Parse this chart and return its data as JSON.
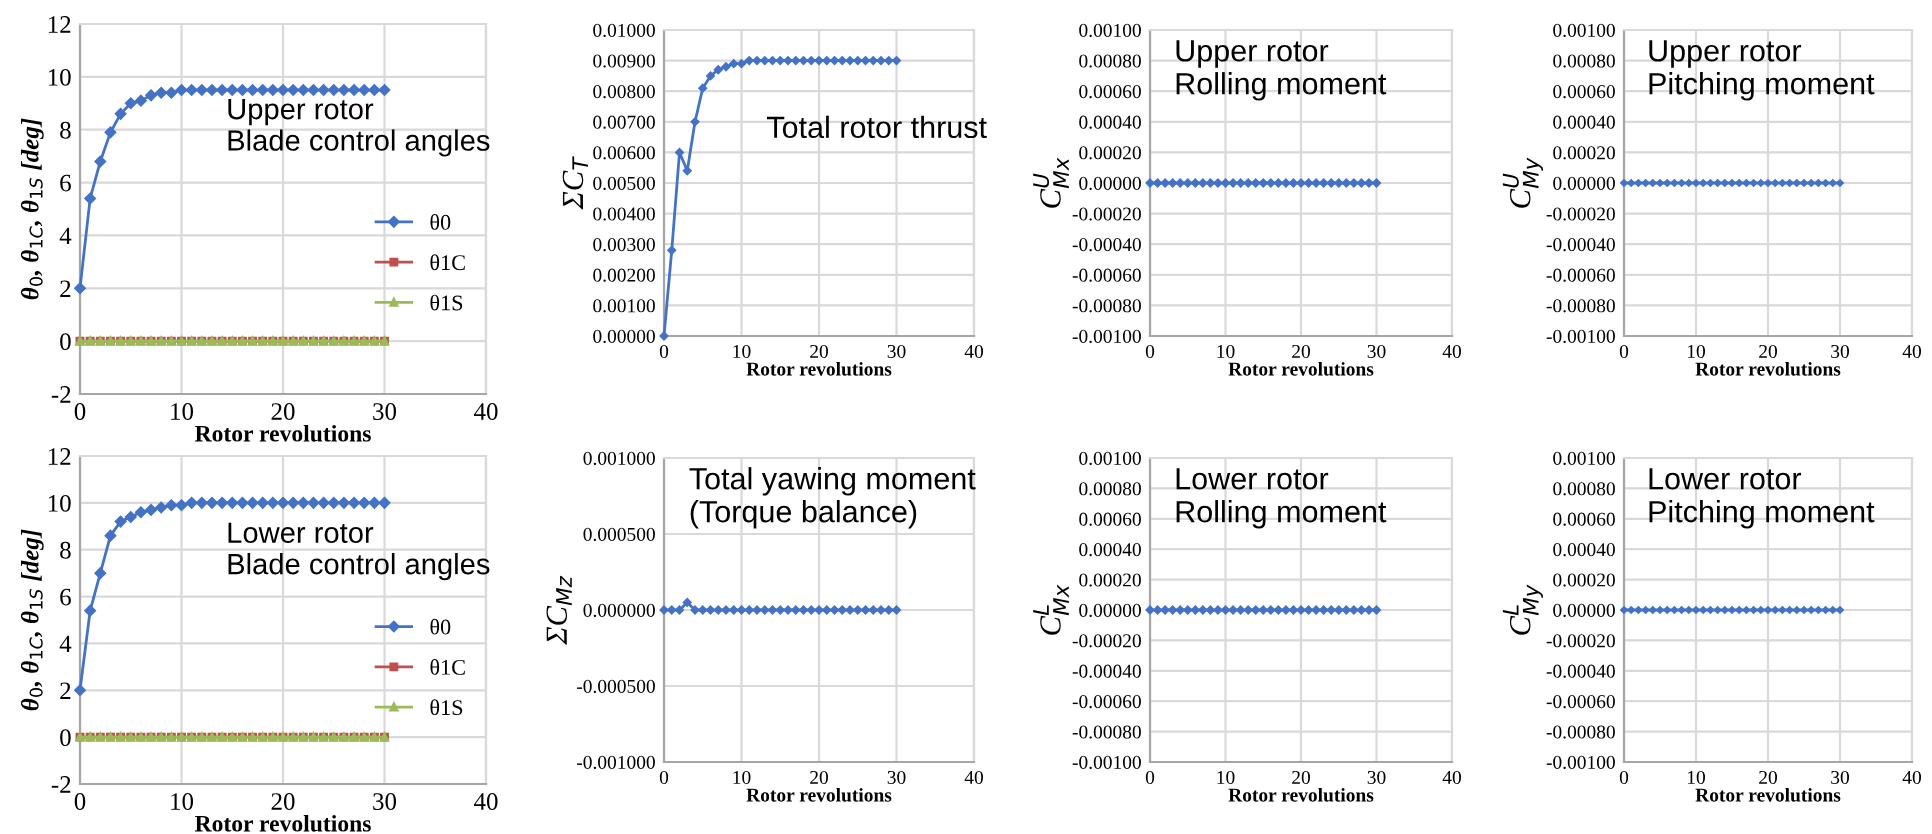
{
  "chart_data": [
    {
      "type": "line",
      "annotations": [
        "Upper rotor\nBlade control angles"
      ],
      "xlabel": "Rotor revolutions",
      "ylabel": "θ$_{0}$, θ$_{1C}$, θ$_{1S}$ [deg]",
      "x": [
        0,
        1,
        2,
        3,
        4,
        5,
        6,
        7,
        8,
        9,
        10,
        11,
        12,
        13,
        14,
        15,
        16,
        17,
        18,
        19,
        20,
        21,
        22,
        23,
        24,
        25,
        26,
        27,
        28,
        29,
        30
      ],
      "xlim": [
        0,
        40
      ],
      "xticks": [
        0,
        10,
        20,
        30,
        40
      ],
      "ylim": [
        -2,
        12
      ],
      "yticks": [
        -2,
        0,
        2,
        4,
        6,
        8,
        10,
        12
      ],
      "grid": true,
      "legend": "right",
      "series": [
        {
          "name": "θ0",
          "color": "#4472c4",
          "marker": "diamond",
          "values": [
            2.0,
            5.4,
            6.8,
            7.9,
            8.6,
            9.0,
            9.1,
            9.3,
            9.4,
            9.4,
            9.5,
            9.5,
            9.5,
            9.5,
            9.5,
            9.5,
            9.5,
            9.5,
            9.5,
            9.5,
            9.5,
            9.5,
            9.5,
            9.5,
            9.5,
            9.5,
            9.5,
            9.5,
            9.5,
            9.5,
            9.5
          ]
        },
        {
          "name": "θ1C",
          "color": "#c0504d",
          "marker": "square",
          "values": [
            0,
            0,
            0,
            0,
            0,
            0,
            0,
            0,
            0,
            0,
            0,
            0,
            0,
            0,
            0,
            0,
            0,
            0,
            0,
            0,
            0,
            0,
            0,
            0,
            0,
            0,
            0,
            0,
            0,
            0,
            0
          ]
        },
        {
          "name": "θ1S",
          "color": "#9bbb59",
          "marker": "triangle",
          "values": [
            0,
            0,
            0,
            0,
            0,
            0,
            0,
            0,
            0,
            0,
            0,
            0,
            0,
            0,
            0,
            0,
            0,
            0,
            0,
            0,
            0,
            0,
            0,
            0,
            0,
            0,
            0,
            0,
            0,
            0,
            0
          ]
        }
      ]
    },
    {
      "type": "line",
      "annotations": [
        "Total rotor thrust"
      ],
      "xlabel": "Rotor revolutions",
      "ylabel": "ΣC$_{T}$",
      "x": [
        0,
        1,
        2,
        3,
        4,
        5,
        6,
        7,
        8,
        9,
        10,
        11,
        12,
        13,
        14,
        15,
        16,
        17,
        18,
        19,
        20,
        21,
        22,
        23,
        24,
        25,
        26,
        27,
        28,
        29,
        30
      ],
      "xlim": [
        0,
        40
      ],
      "xticks": [
        0,
        10,
        20,
        30,
        40
      ],
      "ylim": [
        0,
        0.01
      ],
      "yticks": [
        {
          "value": 0,
          "label": "0.00000"
        },
        {
          "value": 0.001,
          "label": "0.00100"
        },
        {
          "value": 0.002,
          "label": "0.00200"
        },
        {
          "value": 0.003,
          "label": "0.00300"
        },
        {
          "value": 0.004,
          "label": "0.00400"
        },
        {
          "value": 0.005,
          "label": "0.00500"
        },
        {
          "value": 0.006,
          "label": "0.00600"
        },
        {
          "value": 0.007,
          "label": "0.00700"
        },
        {
          "value": 0.008,
          "label": "0.00800"
        },
        {
          "value": 0.009,
          "label": "0.00900"
        },
        {
          "value": 0.01,
          "label": "0.01000"
        }
      ],
      "grid": true,
      "series": [
        {
          "color": "#4472c4",
          "marker": "diamond",
          "values": [
            0,
            0.0028,
            0.006,
            0.0054,
            0.007,
            0.0081,
            0.0085,
            0.0087,
            0.0088,
            0.0089,
            0.0089,
            0.009,
            0.009,
            0.009,
            0.009,
            0.009,
            0.009,
            0.009,
            0.009,
            0.009,
            0.009,
            0.009,
            0.009,
            0.009,
            0.009,
            0.009,
            0.009,
            0.009,
            0.009,
            0.009,
            0.009
          ]
        }
      ]
    },
    {
      "type": "line",
      "annotations": [
        "Upper rotor\nRolling moment"
      ],
      "xlabel": "Rotor revolutions",
      "ylabel": "C$^{U}$$_{Mx}$",
      "x": [
        0,
        1,
        2,
        3,
        4,
        5,
        6,
        7,
        8,
        9,
        10,
        11,
        12,
        13,
        14,
        15,
        16,
        17,
        18,
        19,
        20,
        21,
        22,
        23,
        24,
        25,
        26,
        27,
        28,
        29,
        30
      ],
      "xlim": [
        0,
        40
      ],
      "xticks": [
        0,
        10,
        20,
        30,
        40
      ],
      "ylim": [
        -0.001,
        0.001
      ],
      "yticks": [
        {
          "value": -0.001,
          "label": "-0.00100"
        },
        {
          "value": -0.0008,
          "label": "-0.00080"
        },
        {
          "value": -0.0006,
          "label": "-0.00060"
        },
        {
          "value": -0.0004,
          "label": "-0.00040"
        },
        {
          "value": -0.0002,
          "label": "-0.00020"
        },
        {
          "value": 0,
          "label": "0.00000"
        },
        {
          "value": 0.0002,
          "label": "0.00020"
        },
        {
          "value": 0.0004,
          "label": "0.00040"
        },
        {
          "value": 0.0006,
          "label": "0.00060"
        },
        {
          "value": 0.0008,
          "label": "0.00080"
        },
        {
          "value": 0.001,
          "label": "0.00100"
        }
      ],
      "grid": true,
      "series": [
        {
          "color": "#4472c4",
          "marker": "diamond",
          "values": [
            0,
            0,
            0,
            0,
            0,
            0,
            0,
            0,
            0,
            0,
            0,
            0,
            0,
            0,
            0,
            0,
            0,
            0,
            0,
            0,
            0,
            0,
            0,
            0,
            0,
            0,
            0,
            0,
            0,
            0,
            0
          ]
        }
      ]
    },
    {
      "type": "line",
      "annotations": [
        "Upper rotor\nPitching moment"
      ],
      "xlabel": "Rotor revolutions",
      "ylabel": "C$^{U}$$_{My}$",
      "x": [
        0,
        1,
        2,
        3,
        4,
        5,
        6,
        7,
        8,
        9,
        10,
        11,
        12,
        13,
        14,
        15,
        16,
        17,
        18,
        19,
        20,
        21,
        22,
        23,
        24,
        25,
        26,
        27,
        28,
        29,
        30
      ],
      "xlim": [
        0,
        40
      ],
      "xticks": [
        0,
        10,
        20,
        30,
        40
      ],
      "ylim": [
        -0.001,
        0.001
      ],
      "yticks": [
        {
          "value": -0.001,
          "label": "-0.00100"
        },
        {
          "value": -0.0008,
          "label": "-0.00080"
        },
        {
          "value": -0.0006,
          "label": "-0.00060"
        },
        {
          "value": -0.0004,
          "label": "-0.00040"
        },
        {
          "value": -0.0002,
          "label": "-0.00020"
        },
        {
          "value": 0,
          "label": "0.00000"
        },
        {
          "value": 0.0002,
          "label": "0.00020"
        },
        {
          "value": 0.0004,
          "label": "0.00040"
        },
        {
          "value": 0.0006,
          "label": "0.00060"
        },
        {
          "value": 0.0008,
          "label": "0.00080"
        },
        {
          "value": 0.001,
          "label": "0.00100"
        }
      ],
      "grid": true,
      "series": [
        {
          "color": "#4472c4",
          "marker": "diamond",
          "values": [
            0,
            0,
            0,
            0,
            0,
            0,
            0,
            0,
            0,
            0,
            0,
            0,
            0,
            0,
            0,
            0,
            0,
            0,
            0,
            0,
            0,
            0,
            0,
            0,
            0,
            0,
            0,
            0,
            0,
            0,
            0
          ]
        }
      ]
    },
    {
      "type": "line",
      "annotations": [
        "Lower rotor\nBlade control angles"
      ],
      "xlabel": "Rotor revolutions",
      "ylabel": "θ$_{0}$, θ$_{1C}$, θ$_{1S}$ [deg]",
      "x": [
        0,
        1,
        2,
        3,
        4,
        5,
        6,
        7,
        8,
        9,
        10,
        11,
        12,
        13,
        14,
        15,
        16,
        17,
        18,
        19,
        20,
        21,
        22,
        23,
        24,
        25,
        26,
        27,
        28,
        29,
        30
      ],
      "xlim": [
        0,
        40
      ],
      "xticks": [
        0,
        10,
        20,
        30,
        40
      ],
      "ylim": [
        -2,
        12
      ],
      "yticks": [
        -2,
        0,
        2,
        4,
        6,
        8,
        10,
        12
      ],
      "grid": true,
      "legend": "right",
      "series": [
        {
          "name": "θ0",
          "color": "#4472c4",
          "marker": "diamond",
          "values": [
            2.0,
            5.4,
            7.0,
            8.6,
            9.2,
            9.4,
            9.6,
            9.7,
            9.8,
            9.9,
            9.9,
            10.0,
            10.0,
            10.0,
            10.0,
            10.0,
            10.0,
            10.0,
            10.0,
            10.0,
            10.0,
            10.0,
            10.0,
            10.0,
            10.0,
            10.0,
            10.0,
            10.0,
            10.0,
            10.0,
            10.0
          ]
        },
        {
          "name": "θ1C",
          "color": "#c0504d",
          "marker": "square",
          "values": [
            0,
            0,
            0,
            0,
            0,
            0,
            0,
            0,
            0,
            0,
            0,
            0,
            0,
            0,
            0,
            0,
            0,
            0,
            0,
            0,
            0,
            0,
            0,
            0,
            0,
            0,
            0,
            0,
            0,
            0,
            0
          ]
        },
        {
          "name": "θ1S",
          "color": "#9bbb59",
          "marker": "triangle",
          "values": [
            0,
            0,
            0,
            0,
            0,
            0,
            0,
            0,
            0,
            0,
            0,
            0,
            0,
            0,
            0,
            0,
            0,
            0,
            0,
            0,
            0,
            0,
            0,
            0,
            0,
            0,
            0,
            0,
            0,
            0,
            0
          ]
        }
      ]
    },
    {
      "type": "line",
      "annotations": [
        "Total yawing moment\n(Torque balance)"
      ],
      "xlabel": "Rotor revolutions",
      "ylabel": "ΣC$_{Mz}$",
      "x": [
        0,
        1,
        2,
        3,
        4,
        5,
        6,
        7,
        8,
        9,
        10,
        11,
        12,
        13,
        14,
        15,
        16,
        17,
        18,
        19,
        20,
        21,
        22,
        23,
        24,
        25,
        26,
        27,
        28,
        29,
        30
      ],
      "xlim": [
        0,
        40
      ],
      "xticks": [
        0,
        10,
        20,
        30,
        40
      ],
      "ylim": [
        -0.001,
        0.001
      ],
      "yticks": [
        {
          "value": -0.001,
          "label": "-0.001000"
        },
        {
          "value": -0.0005,
          "label": "-0.000500"
        },
        {
          "value": 0,
          "label": "0.000000"
        },
        {
          "value": 0.0005,
          "label": "0.000500"
        },
        {
          "value": 0.001,
          "label": "0.001000"
        }
      ],
      "grid": true,
      "series": [
        {
          "color": "#4472c4",
          "marker": "diamond",
          "values": [
            0,
            0,
            0,
            5e-05,
            0,
            0,
            0,
            0,
            0,
            0,
            0,
            0,
            0,
            0,
            0,
            0,
            0,
            0,
            0,
            0,
            0,
            0,
            0,
            0,
            0,
            0,
            0,
            0,
            0,
            0,
            0
          ]
        }
      ]
    },
    {
      "type": "line",
      "annotations": [
        "Lower rotor\nRolling moment"
      ],
      "xlabel": "Rotor revolutions",
      "ylabel": "C$^{L}$$_{Mx}$",
      "x": [
        0,
        1,
        2,
        3,
        4,
        5,
        6,
        7,
        8,
        9,
        10,
        11,
        12,
        13,
        14,
        15,
        16,
        17,
        18,
        19,
        20,
        21,
        22,
        23,
        24,
        25,
        26,
        27,
        28,
        29,
        30
      ],
      "xlim": [
        0,
        40
      ],
      "xticks": [
        0,
        10,
        20,
        30,
        40
      ],
      "ylim": [
        -0.001,
        0.001
      ],
      "yticks": [
        {
          "value": -0.001,
          "label": "-0.00100"
        },
        {
          "value": -0.0008,
          "label": "-0.00080"
        },
        {
          "value": -0.0006,
          "label": "-0.00060"
        },
        {
          "value": -0.0004,
          "label": "-0.00040"
        },
        {
          "value": -0.0002,
          "label": "-0.00020"
        },
        {
          "value": 0,
          "label": "0.00000"
        },
        {
          "value": 0.0002,
          "label": "0.00020"
        },
        {
          "value": 0.0004,
          "label": "0.00040"
        },
        {
          "value": 0.0006,
          "label": "0.00060"
        },
        {
          "value": 0.0008,
          "label": "0.00080"
        },
        {
          "value": 0.001,
          "label": "0.00100"
        }
      ],
      "grid": true,
      "series": [
        {
          "color": "#4472c4",
          "marker": "diamond",
          "values": [
            0,
            0,
            0,
            0,
            0,
            0,
            0,
            0,
            0,
            0,
            0,
            0,
            0,
            0,
            0,
            0,
            0,
            0,
            0,
            0,
            0,
            0,
            0,
            0,
            0,
            0,
            0,
            0,
            0,
            0,
            0
          ]
        }
      ]
    },
    {
      "type": "line",
      "annotations": [
        "Lower rotor\nPitching moment"
      ],
      "xlabel": "Rotor revolutions",
      "ylabel": "C$^{L}$$_{My}$",
      "x": [
        0,
        1,
        2,
        3,
        4,
        5,
        6,
        7,
        8,
        9,
        10,
        11,
        12,
        13,
        14,
        15,
        16,
        17,
        18,
        19,
        20,
        21,
        22,
        23,
        24,
        25,
        26,
        27,
        28,
        29,
        30
      ],
      "xlim": [
        0,
        40
      ],
      "xticks": [
        0,
        10,
        20,
        30,
        40
      ],
      "ylim": [
        -0.001,
        0.001
      ],
      "yticks": [
        {
          "value": -0.001,
          "label": "-0.00100"
        },
        {
          "value": -0.0008,
          "label": "-0.00080"
        },
        {
          "value": -0.0006,
          "label": "-0.00060"
        },
        {
          "value": -0.0004,
          "label": "-0.00040"
        },
        {
          "value": -0.0002,
          "label": "-0.00020"
        },
        {
          "value": 0,
          "label": "0.00000"
        },
        {
          "value": 0.0002,
          "label": "0.00020"
        },
        {
          "value": 0.0004,
          "label": "0.00040"
        },
        {
          "value": 0.0006,
          "label": "0.00060"
        },
        {
          "value": 0.0008,
          "label": "0.00080"
        },
        {
          "value": 0.001,
          "label": "0.00100"
        }
      ],
      "grid": true,
      "series": [
        {
          "color": "#4472c4",
          "marker": "diamond",
          "values": [
            0,
            0,
            0,
            0,
            0,
            0,
            0,
            0,
            0,
            0,
            0,
            0,
            0,
            0,
            0,
            0,
            0,
            0,
            0,
            0,
            0,
            0,
            0,
            0,
            0,
            0,
            0,
            0,
            0,
            0,
            0
          ]
        }
      ]
    }
  ]
}
